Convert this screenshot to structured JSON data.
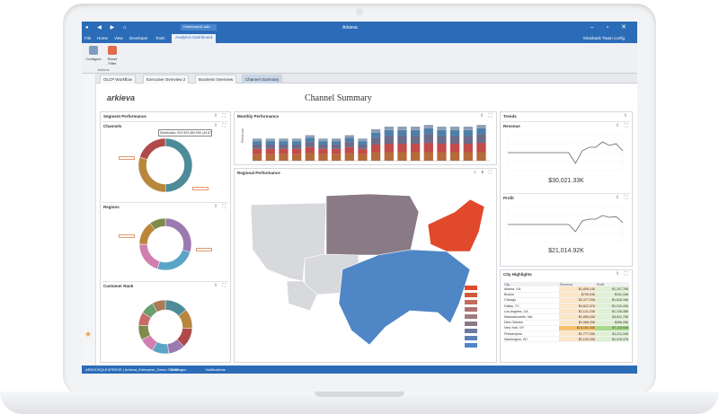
{
  "window": {
    "title": "Arkieva",
    "document_tab": "Dashboard1.adb",
    "user": "Shashank Tiwari config"
  },
  "ribbon_tabs": [
    "File",
    "Home",
    "View",
    "Developer",
    "Tools",
    "Analytics Dashboard"
  ],
  "ribbon": {
    "buttons": [
      {
        "label": "Configure"
      },
      {
        "label": "Reset Filter"
      }
    ],
    "group_label": "Actions"
  },
  "doc_tabs": [
    {
      "label": "OLCP Workflow"
    },
    {
      "label": "Executive Overview 2"
    },
    {
      "label": "Business Overview"
    },
    {
      "label": "Channel Summary"
    }
  ],
  "dashboard": {
    "logo": "arkieva",
    "title": "Channel Summary",
    "segment_panel": {
      "title": "Segment Performance",
      "sections": [
        {
          "title": "Channels",
          "tooltip": "Distribution: $70,903,389.99K (49.87 %)"
        },
        {
          "title": "Regions"
        },
        {
          "title": "Customer Rank"
        }
      ]
    },
    "monthly_panel": {
      "title": "Monthly Performance",
      "ylabel": "Revenue"
    },
    "regional_panel": {
      "title": "Regional Performance"
    },
    "trends_panel": {
      "title": "Trends",
      "revenue": {
        "title": "Revenue",
        "value": "$30,021.33K"
      },
      "profit": {
        "title": "Profit",
        "value": "$21,014.92K"
      }
    },
    "city_panel": {
      "title": "City Highlights",
      "columns": [
        "City",
        "Revenue",
        "Profit"
      ],
      "rows": [
        {
          "city": "Atlanta, GA",
          "revenue": "$1,806.146",
          "profit": "$1,147.766"
        },
        {
          "city": "Boston",
          "revenue": "$726,046",
          "profit": "$151,346"
        },
        {
          "city": "Chicago",
          "revenue": "$2,377,036",
          "profit": "$1,616,166"
        },
        {
          "city": "Dallas, TX",
          "revenue": "$4,822,376",
          "profit": "$1,210,436"
        },
        {
          "city": "Los Angeles, CA",
          "revenue": "$2,121,236",
          "profit": "$1,126,386"
        },
        {
          "city": "Massachusetts, MA",
          "revenue": "$1,806,346",
          "profit": "$4,811,756"
        },
        {
          "city": "New Orleans",
          "revenue": "$1,066,256",
          "profit": "$456,256"
        },
        {
          "city": "New York, NY",
          "revenue": "$10,161,536",
          "profit": "$7,115,946"
        },
        {
          "city": "Philadelphia",
          "revenue": "$1,777,256",
          "profit": "$1,211,346"
        },
        {
          "city": "Washington, DC",
          "revenue": "$2,102,206",
          "profit": "$1,216,376"
        }
      ]
    }
  },
  "status_bar": {
    "connection": "ARK01\\SQLEXPRESS | Arkieva_Enterprise_Demo 2.0 DP",
    "messages": "Messages",
    "notifications": "Notifications"
  },
  "colors": {
    "chrome_blue": "#2b6cb8",
    "donut": [
      "#4e8b99",
      "#b8863c",
      "#b04a4a",
      "#9b7ab0",
      "#5aa4c6",
      "#d07fb0",
      "#7e8b4a"
    ],
    "bar_stack": [
      "#b56b3a",
      "#c24b4b",
      "#6b6b8a",
      "#4f7fa8",
      "#8fa0b6"
    ],
    "map": {
      "gray": "#d8d9dc",
      "purple": "#8a7a86",
      "blue": "#4f86c6",
      "red": "#e0492a"
    }
  },
  "chart_data": [
    {
      "type": "bar",
      "title": "Monthly Performance",
      "ylabel": "Revenue",
      "stacked": true,
      "series": [
        {
          "values": [
            8,
            8,
            8,
            8,
            9,
            8,
            8,
            9,
            8,
            10,
            10,
            10,
            10,
            10,
            10,
            10,
            10,
            10
          ]
        },
        {
          "values": [
            6,
            6,
            6,
            6,
            7,
            6,
            6,
            7,
            6,
            9,
            10,
            10,
            10,
            11,
            10,
            10,
            10,
            11
          ]
        },
        {
          "values": [
            5,
            5,
            5,
            5,
            6,
            5,
            5,
            6,
            5,
            8,
            9,
            9,
            9,
            10,
            9,
            9,
            9,
            10
          ]
        },
        {
          "values": [
            4,
            4,
            4,
            4,
            5,
            4,
            4,
            5,
            4,
            6,
            7,
            7,
            7,
            7,
            7,
            7,
            7,
            7
          ]
        },
        {
          "values": [
            3,
            3,
            3,
            3,
            3,
            3,
            3,
            3,
            3,
            4,
            4,
            4,
            4,
            4,
            4,
            4,
            4,
            4
          ]
        }
      ]
    },
    {
      "type": "line",
      "title": "Revenue",
      "values": [
        50,
        50,
        50,
        50,
        50,
        50,
        50,
        50,
        50,
        50,
        20,
        55,
        65,
        65,
        80,
        70,
        75,
        55
      ]
    },
    {
      "type": "line",
      "title": "Profit",
      "values": [
        50,
        50,
        50,
        50,
        50,
        50,
        50,
        50,
        50,
        50,
        30,
        60,
        65,
        65,
        75,
        70,
        72,
        55
      ]
    },
    {
      "type": "pie",
      "title": "Channels",
      "values": [
        49.87,
        30,
        20.13
      ]
    },
    {
      "type": "pie",
      "title": "Regions",
      "values": [
        30,
        25,
        20,
        15,
        10
      ]
    },
    {
      "type": "pie",
      "title": "Customer Rank",
      "values": [
        14,
        12,
        12,
        10,
        10,
        9,
        9,
        8,
        8,
        8
      ]
    }
  ]
}
